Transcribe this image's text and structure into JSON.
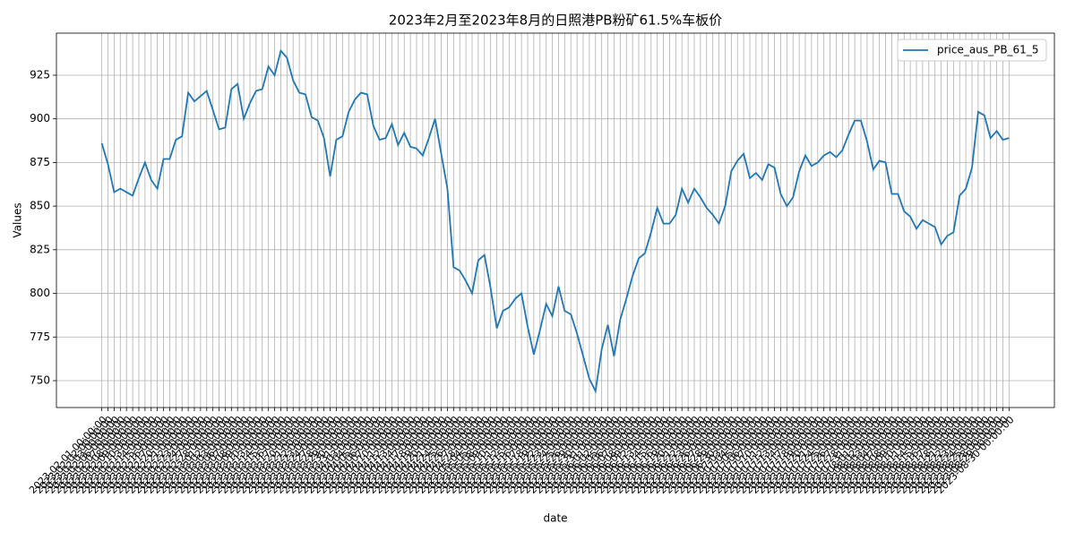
{
  "chart_data": {
    "type": "line",
    "title": "2023年2月至2023年8月的日照港PB粉矿61.5%车板价",
    "xlabel": "date",
    "ylabel": "Values",
    "categories": [
      "2023-02-01 00:00:00",
      "2023-02-02 00:00:00",
      "2023-02-03 00:00:00",
      "2023-02-06 00:00:00",
      "2023-02-07 00:00:00",
      "2023-02-08 00:00:00",
      "2023-02-09 00:00:00",
      "2023-02-10 00:00:00",
      "2023-02-13 00:00:00",
      "2023-02-14 00:00:00",
      "2023-02-15 00:00:00",
      "2023-02-16 00:00:00",
      "2023-02-17 00:00:00",
      "2023-02-20 00:00:00",
      "2023-02-21 00:00:00",
      "2023-02-22 00:00:00",
      "2023-02-23 00:00:00",
      "2023-02-24 00:00:00",
      "2023-02-27 00:00:00",
      "2023-02-28 00:00:00",
      "2023-03-01 00:00:00",
      "2023-03-02 00:00:00",
      "2023-03-03 00:00:00",
      "2023-03-06 00:00:00",
      "2023-03-07 00:00:00",
      "2023-03-08 00:00:00",
      "2023-03-09 00:00:00",
      "2023-03-10 00:00:00",
      "2023-03-13 00:00:00",
      "2023-03-14 00:00:00",
      "2023-03-15 00:00:00",
      "2023-03-16 00:00:00",
      "2023-03-17 00:00:00",
      "2023-03-20 00:00:00",
      "2023-03-21 00:00:00",
      "2023-03-22 00:00:00",
      "2023-03-23 00:00:00",
      "2023-03-24 00:00:00",
      "2023-03-27 00:00:00",
      "2023-03-28 00:00:00",
      "2023-03-29 00:00:00",
      "2023-03-30 00:00:00",
      "2023-03-31 00:00:00",
      "2023-04-03 00:00:00",
      "2023-04-04 00:00:00",
      "2023-04-05 00:00:00",
      "2023-04-06 00:00:00",
      "2023-04-07 00:00:00",
      "2023-04-10 00:00:00",
      "2023-04-11 00:00:00",
      "2023-04-12 00:00:00",
      "2023-04-13 00:00:00",
      "2023-04-14 00:00:00",
      "2023-04-17 00:00:00",
      "2023-04-18 00:00:00",
      "2023-04-19 00:00:00",
      "2023-04-20 00:00:00",
      "2023-04-21 00:00:00",
      "2023-04-24 00:00:00",
      "2023-04-25 00:00:00",
      "2023-04-26 00:00:00",
      "2023-04-27 00:00:00",
      "2023-04-28 00:00:00",
      "2023-05-04 00:00:00",
      "2023-05-05 00:00:00",
      "2023-05-08 00:00:00",
      "2023-05-09 00:00:00",
      "2023-05-10 00:00:00",
      "2023-05-11 00:00:00",
      "2023-05-12 00:00:00",
      "2023-05-15 00:00:00",
      "2023-05-16 00:00:00",
      "2023-05-17 00:00:00",
      "2023-05-18 00:00:00",
      "2023-05-19 00:00:00",
      "2023-05-22 00:00:00",
      "2023-05-23 00:00:00",
      "2023-05-24 00:00:00",
      "2023-05-25 00:00:00",
      "2023-05-26 00:00:00",
      "2023-05-29 00:00:00",
      "2023-05-30 00:00:00",
      "2023-05-31 00:00:00",
      "2023-06-01 00:00:00",
      "2023-06-02 00:00:00",
      "2023-06-05 00:00:00",
      "2023-06-06 00:00:00",
      "2023-06-07 00:00:00",
      "2023-06-08 00:00:00",
      "2023-06-09 00:00:00",
      "2023-06-12 00:00:00",
      "2023-06-13 00:00:00",
      "2023-06-14 00:00:00",
      "2023-06-15 00:00:00",
      "2023-06-16 00:00:00",
      "2023-06-19 00:00:00",
      "2023-06-20 00:00:00",
      "2023-06-21 00:00:00",
      "2023-06-22 00:00:00",
      "2023-06-23 00:00:00",
      "2023-06-26 00:00:00",
      "2023-06-27 00:00:00",
      "2023-06-28 00:00:00",
      "2023-06-29 00:00:00",
      "2023-06-30 00:00:00",
      "2023-07-03 00:00:00",
      "2023-07-04 00:00:00",
      "2023-07-05 00:00:00",
      "2023-07-06 00:00:00",
      "2023-07-07 00:00:00",
      "2023-07-10 00:00:00",
      "2023-07-11 00:00:00",
      "2023-07-12 00:00:00",
      "2023-07-13 00:00:00",
      "2023-07-14 00:00:00",
      "2023-07-17 00:00:00",
      "2023-07-18 00:00:00",
      "2023-07-19 00:00:00",
      "2023-07-20 00:00:00",
      "2023-07-21 00:00:00",
      "2023-07-24 00:00:00",
      "2023-07-25 00:00:00",
      "2023-07-26 00:00:00",
      "2023-07-27 00:00:00",
      "2023-07-28 00:00:00",
      "2023-07-31 00:00:00",
      "2023-08-01 00:00:00",
      "2023-08-02 00:00:00",
      "2023-08-03 00:00:00",
      "2023-08-04 00:00:00",
      "2023-08-07 00:00:00",
      "2023-08-08 00:00:00",
      "2023-08-09 00:00:00",
      "2023-08-10 00:00:00",
      "2023-08-11 00:00:00",
      "2023-08-14 00:00:00",
      "2023-08-15 00:00:00",
      "2023-08-16 00:00:00",
      "2023-08-17 00:00:00",
      "2023-08-18 00:00:00",
      "2023-08-21 00:00:00",
      "2023-08-22 00:00:00",
      "2023-08-23 00:00:00",
      "2023-08-24 00:00:00",
      "2023-08-25 00:00:00",
      "2023-08-28 00:00:00",
      "2023-08-29 00:00:00",
      "2023-08-30 00:00:00"
    ],
    "series": [
      {
        "name": "price_aus_PB_61_5",
        "color": "#1f77b4",
        "values": [
          886,
          874,
          858,
          860,
          858,
          856,
          866,
          875,
          865,
          860,
          877,
          877,
          888,
          890,
          915,
          910,
          913,
          916,
          905,
          894,
          895,
          917,
          920,
          900,
          909,
          916,
          917,
          930,
          925,
          939,
          935,
          922,
          915,
          914,
          901,
          899,
          889,
          867,
          888,
          890,
          904,
          911,
          915,
          914,
          896,
          888,
          889,
          897,
          885,
          892,
          884,
          883,
          879,
          889,
          900,
          880,
          860,
          815,
          813,
          807,
          800,
          819,
          822,
          803,
          780,
          790,
          792,
          797,
          800,
          781,
          765,
          779,
          794,
          787,
          804,
          790,
          788,
          777,
          764,
          751,
          744,
          768,
          782,
          764,
          785,
          797,
          810,
          820,
          823,
          835,
          849,
          840,
          840,
          845,
          860,
          852,
          860,
          855,
          849,
          845,
          840,
          850,
          870,
          876,
          880,
          866,
          869,
          865,
          874,
          872,
          857,
          850,
          855,
          870,
          879,
          873,
          875,
          879,
          881,
          878,
          882,
          891,
          899,
          899,
          887,
          871,
          876,
          875,
          857,
          857,
          847,
          844,
          837,
          842,
          840,
          838,
          828,
          833,
          835,
          856,
          860,
          872,
          904,
          902,
          889,
          893,
          888,
          889
        ]
      }
    ],
    "ylim": [
      734.6,
      949.1
    ],
    "yticks": [
      750,
      775,
      800,
      825,
      850,
      875,
      900,
      925
    ],
    "grid": true,
    "legend": "upper right"
  }
}
